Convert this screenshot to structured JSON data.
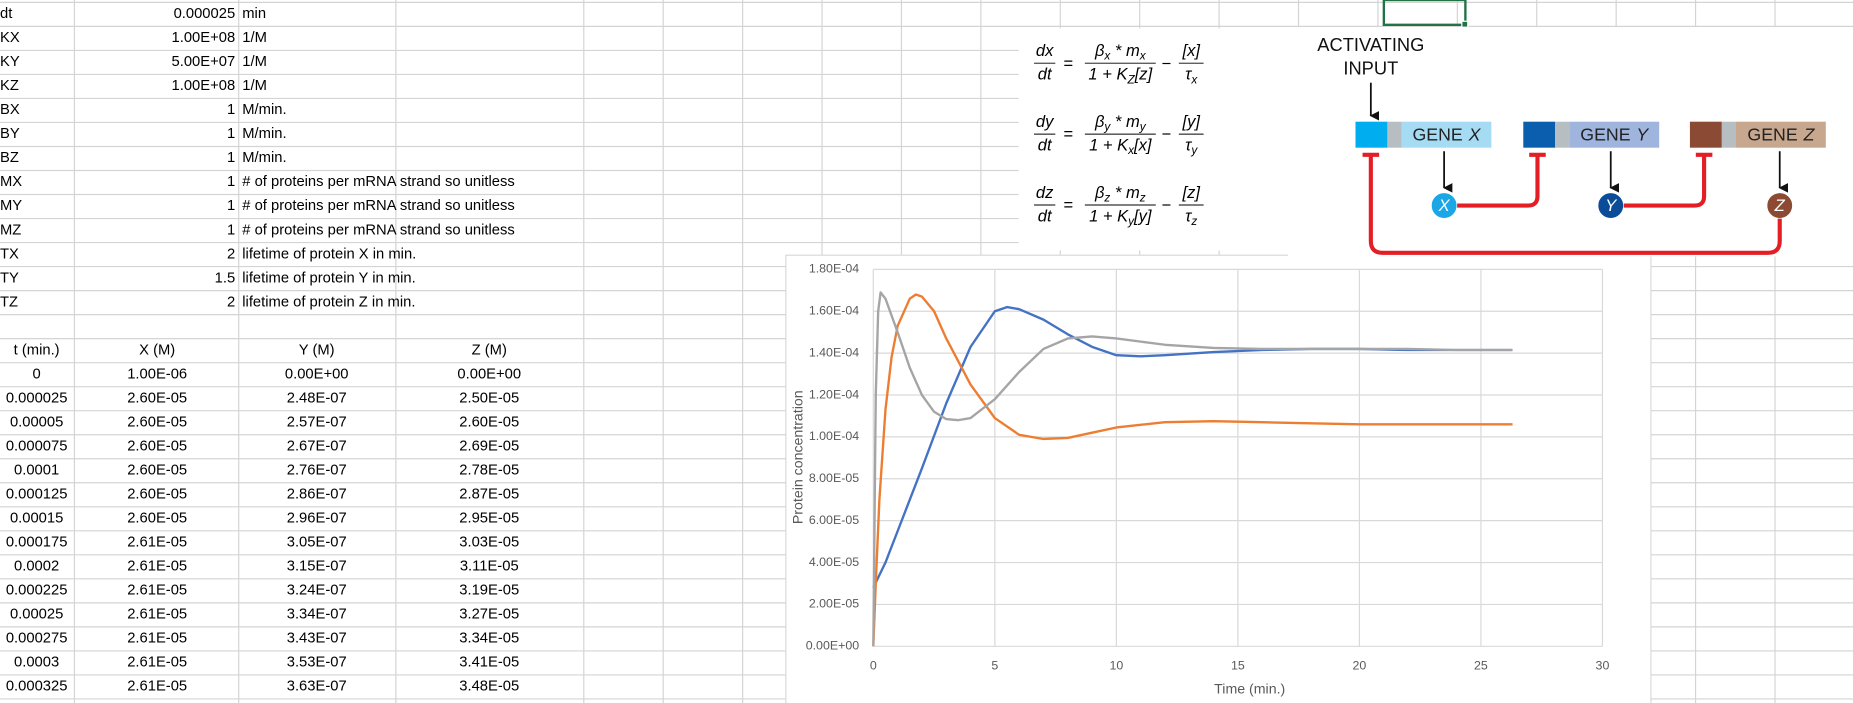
{
  "sheet": {
    "params": [
      [
        "dt",
        "0.000025",
        "min"
      ],
      [
        "KX",
        "1.00E+08",
        "1/M"
      ],
      [
        "KY",
        "5.00E+07",
        "1/M"
      ],
      [
        "KZ",
        "1.00E+08",
        "1/M"
      ],
      [
        "BX",
        "1",
        "M/min."
      ],
      [
        "BY",
        "1",
        "M/min."
      ],
      [
        "BZ",
        "1",
        "M/min."
      ],
      [
        "MX",
        "1",
        "# of proteins per mRNA strand so unitless"
      ],
      [
        "MY",
        "1",
        "# of proteins per mRNA strand so unitless"
      ],
      [
        "MZ",
        "1",
        "# of proteins per mRNA strand so unitless"
      ],
      [
        "TX",
        "2",
        "lifetime of protein X in min."
      ],
      [
        "TY",
        "1.5",
        "lifetime of protein Y in min."
      ],
      [
        "TZ",
        "2",
        "lifetime of protein Z in min."
      ]
    ],
    "table": {
      "header": [
        "t (min.)",
        "X (M)",
        "Y (M)",
        "Z (M)"
      ],
      "rows": [
        [
          "0",
          "1.00E-06",
          "0.00E+00",
          "0.00E+00"
        ],
        [
          "0.000025",
          "2.60E-05",
          "2.48E-07",
          "2.50E-05"
        ],
        [
          "0.00005",
          "2.60E-05",
          "2.57E-07",
          "2.60E-05"
        ],
        [
          "0.000075",
          "2.60E-05",
          "2.67E-07",
          "2.69E-05"
        ],
        [
          "0.0001",
          "2.60E-05",
          "2.76E-07",
          "2.78E-05"
        ],
        [
          "0.000125",
          "2.60E-05",
          "2.86E-07",
          "2.87E-05"
        ],
        [
          "0.00015",
          "2.60E-05",
          "2.96E-07",
          "2.95E-05"
        ],
        [
          "0.000175",
          "2.61E-05",
          "3.05E-07",
          "3.03E-05"
        ],
        [
          "0.0002",
          "2.61E-05",
          "3.15E-07",
          "3.11E-05"
        ],
        [
          "0.000225",
          "2.61E-05",
          "3.24E-07",
          "3.19E-05"
        ],
        [
          "0.00025",
          "2.61E-05",
          "3.34E-07",
          "3.27E-05"
        ],
        [
          "0.000275",
          "2.61E-05",
          "3.43E-07",
          "3.34E-05"
        ],
        [
          "0.0003",
          "2.61E-05",
          "3.53E-07",
          "3.41E-05"
        ],
        [
          "0.000325",
          "2.61E-05",
          "3.63E-07",
          "3.48E-05"
        ]
      ]
    }
  },
  "equations": [
    {
      "lhs_num": [
        "dx"
      ],
      "lhs_den": [
        "dt"
      ],
      "equals": "=",
      "t1_num": [
        "β",
        "x",
        " * m",
        "x"
      ],
      "t1_den": [
        "1 + K",
        "Z",
        "[z]"
      ],
      "minus": "−",
      "t2_num": [
        "[x]"
      ],
      "t2_den": [
        "τ",
        "x"
      ]
    },
    {
      "lhs_num": [
        "dy"
      ],
      "lhs_den": [
        "dt"
      ],
      "equals": "=",
      "t1_num": [
        "β",
        "y",
        " * m",
        "y"
      ],
      "t1_den": [
        "1 + K",
        "x",
        "[x]"
      ],
      "minus": "−",
      "t2_num": [
        "[y]"
      ],
      "t2_den": [
        "τ",
        "y"
      ]
    },
    {
      "lhs_num": [
        "dz"
      ],
      "lhs_den": [
        "dt"
      ],
      "equals": "=",
      "t1_num": [
        "β",
        "z",
        " * m",
        "z"
      ],
      "t1_den": [
        "1 + K",
        "y",
        "[y]"
      ],
      "minus": "−",
      "t2_num": [
        "[z]"
      ],
      "t2_den": [
        "τ",
        "z"
      ]
    }
  ],
  "diagram": {
    "input_label": [
      "ACTIVATING",
      "INPUT"
    ],
    "genes": [
      {
        "label": "GENE",
        "name": "X",
        "protein": "X"
      },
      {
        "label": "GENE",
        "name": "Y",
        "protein": "Y"
      },
      {
        "label": "GENE",
        "name": "Z",
        "protein": "Z"
      }
    ]
  },
  "chart_data": {
    "type": "line",
    "x_label": "Time (min.)",
    "y_label": "Protein concentration",
    "xlim": [
      0,
      30
    ],
    "ylim": [
      0,
      0.00018
    ],
    "xticks": [
      0,
      5,
      10,
      15,
      20,
      25,
      30
    ],
    "yticks": [
      {
        "value": 0,
        "label": "0.00E+00"
      },
      {
        "value": 2e-05,
        "label": "2.00E-05"
      },
      {
        "value": 4e-05,
        "label": "4.00E-05"
      },
      {
        "value": 6e-05,
        "label": "6.00E-05"
      },
      {
        "value": 8e-05,
        "label": "8.00E-05"
      },
      {
        "value": 0.0001,
        "label": "1.00E-04"
      },
      {
        "value": 0.00012,
        "label": "1.20E-04"
      },
      {
        "value": 0.00014,
        "label": "1.40E-04"
      },
      {
        "value": 0.00016,
        "label": "1.60E-04"
      },
      {
        "value": 0.00018,
        "label": "1.80E-04"
      }
    ],
    "grid": true,
    "series": [
      {
        "color": "#4472c4",
        "x": [
          0,
          0.5,
          1,
          2,
          3,
          4,
          5,
          5.5,
          6,
          7,
          8,
          9,
          10,
          11,
          12,
          14,
          16,
          18,
          20,
          22,
          24,
          26.3
        ],
        "values": [
          2.8e-05,
          4e-05,
          5.5e-05,
          8.5e-05,
          0.000116,
          0.000143,
          0.00016,
          0.000162,
          0.000161,
          0.000156,
          0.000149,
          0.000143,
          0.000139,
          0.0001385,
          0.000139,
          0.0001405,
          0.0001415,
          0.000142,
          0.000142,
          0.0001415,
          0.0001415,
          0.0001415
        ]
      },
      {
        "color": "#ed7d31",
        "x": [
          0,
          0.1,
          0.25,
          0.5,
          0.75,
          1,
          1.5,
          1.75,
          2,
          2.5,
          3,
          4,
          5,
          6,
          7,
          8,
          9,
          10,
          12,
          14,
          16,
          18,
          20,
          22,
          24,
          26.3
        ],
        "values": [
          0,
          3e-05,
          7e-05,
          0.000113,
          0.000138,
          0.000153,
          0.000166,
          0.000168,
          0.000167,
          0.00016,
          0.000147,
          0.000125,
          0.000109,
          0.000101,
          9.9e-05,
          9.95e-05,
          0.000102,
          0.0001045,
          0.000107,
          0.0001075,
          0.000107,
          0.0001065,
          0.000106,
          0.000106,
          0.000106,
          0.000106
        ]
      },
      {
        "color": "#a5a5a5",
        "x": [
          0,
          0.05,
          0.1,
          0.2,
          0.3,
          0.5,
          1,
          1.5,
          2,
          2.5,
          3,
          3.5,
          4,
          5,
          6,
          7,
          8,
          9,
          10,
          11,
          12,
          14,
          16,
          18,
          20,
          22,
          24,
          26.3
        ],
        "values": [
          0,
          6e-05,
          0.00012,
          0.00016,
          0.000169,
          0.000166,
          0.00015,
          0.000133,
          0.00012,
          0.000112,
          0.0001085,
          0.000108,
          0.000109,
          0.000118,
          0.000131,
          0.000142,
          0.000147,
          0.000148,
          0.000147,
          0.0001455,
          0.000144,
          0.0001425,
          0.000142,
          0.000142,
          0.000142,
          0.000142,
          0.0001415,
          0.0001415
        ]
      }
    ]
  }
}
